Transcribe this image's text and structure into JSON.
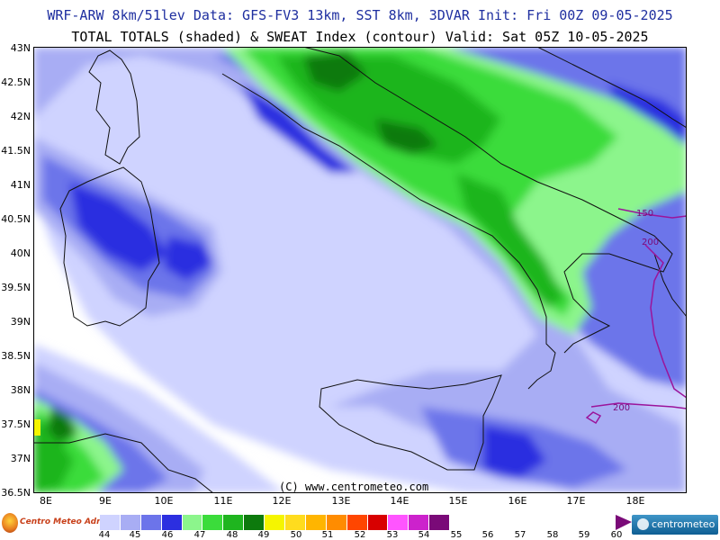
{
  "header": {
    "line1": "WRF-ARW 8km/51lev  Data: GFS-FV3 13km, SST 8km, 3DVAR  Init: Fri 00Z 09-05-2025",
    "line2": "TOTAL TOTALS (shaded) & SWEAT Index (contour)  Valid: Sat 05Z 10-05-2025"
  },
  "axes": {
    "lat_labels": [
      "43N",
      "42.5N",
      "42N",
      "41.5N",
      "41N",
      "40.5N",
      "40N",
      "39.5N",
      "39N",
      "38.5N",
      "38N",
      "37.5N",
      "37N",
      "36.5N"
    ],
    "lon_labels": [
      "8E",
      "9E",
      "10E",
      "11E",
      "12E",
      "13E",
      "14E",
      "15E",
      "16E",
      "17E",
      "18E"
    ]
  },
  "map": {
    "copyright": "(C) www.centrometeo.com",
    "contour_labels": [
      "150",
      "200",
      "200"
    ]
  },
  "legend": {
    "values": [
      "44",
      "45",
      "46",
      "47",
      "48",
      "49",
      "50",
      "51",
      "52",
      "53",
      "54",
      "55",
      "56",
      "57",
      "58",
      "59",
      "60"
    ],
    "colors": [
      "#cfd3ff",
      "#a8adf4",
      "#6c74ea",
      "#2c2fe0",
      "#8cf58c",
      "#3bdc3b",
      "#1fb51f",
      "#0d7a0d",
      "#f5f500",
      "#ffdc1e",
      "#ffb500",
      "#ff8c00",
      "#ff4600",
      "#d80000",
      "#ff55ff",
      "#cc22cc",
      "#7a0a78"
    ]
  },
  "logos": {
    "left": "Centro Meteo Adriatico",
    "right": "centrometeo"
  },
  "colors": {
    "title_blue": "#1f2fa0",
    "sea_white": "#ffffff",
    "contour": "#9b149b"
  }
}
